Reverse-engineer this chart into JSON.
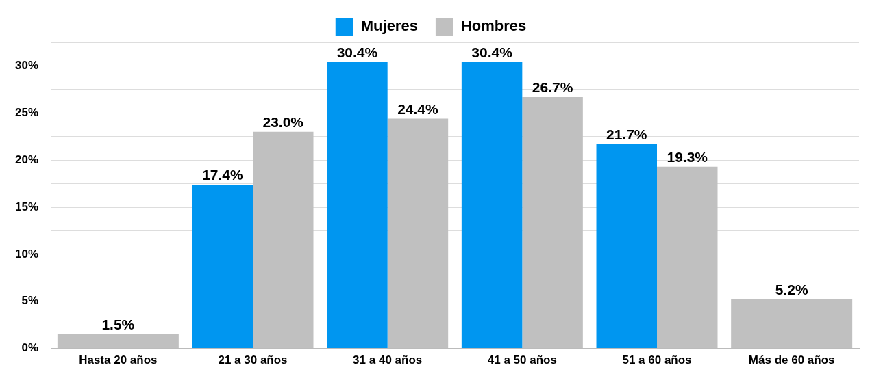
{
  "chart_data": {
    "type": "bar",
    "categories": [
      "Hasta 20 años",
      "21 a 30 años",
      "31 a 40 años",
      "41 a 50 años",
      "51 a 60 años",
      "Más de 60 años"
    ],
    "series": [
      {
        "name": "Mujeres",
        "color": "#0096f0",
        "values": [
          null,
          17.4,
          30.4,
          30.4,
          21.7,
          null
        ],
        "value_labels": [
          null,
          "17.4%",
          "30.4%",
          "30.4%",
          "21.7%",
          null
        ]
      },
      {
        "name": "Hombres",
        "color": "#c0c0c0",
        "values": [
          1.5,
          23.0,
          24.4,
          26.7,
          19.3,
          5.2
        ],
        "value_labels": [
          "1.5%",
          "23.0%",
          "24.4%",
          "26.7%",
          "19.3%",
          "5.2%"
        ]
      }
    ],
    "ylim": [
      0,
      32.5
    ],
    "yticks": [
      {
        "value": 0,
        "label": "0%"
      },
      {
        "value": 2.5,
        "label": null
      },
      {
        "value": 5,
        "label": "5%"
      },
      {
        "value": 7.5,
        "label": null
      },
      {
        "value": 10,
        "label": "10%"
      },
      {
        "value": 12.5,
        "label": null
      },
      {
        "value": 15,
        "label": "15%"
      },
      {
        "value": 17.5,
        "label": null
      },
      {
        "value": 20,
        "label": "20%"
      },
      {
        "value": 22.5,
        "label": null
      },
      {
        "value": 25,
        "label": "25%"
      },
      {
        "value": 27.5,
        "label": null
      },
      {
        "value": 30,
        "label": "30%"
      },
      {
        "value": 32.5,
        "label": null
      }
    ],
    "grid": "y",
    "legend": "top"
  }
}
